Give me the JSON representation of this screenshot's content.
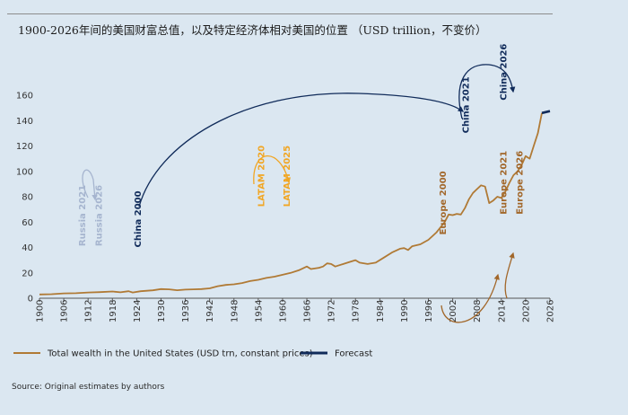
{
  "title": "1900-2026年间的美国财富总值，以及特定经济体相对美国的位置 （USD trillion，不变价）",
  "source": "Source: Original estimates by authors",
  "colors": {
    "historical": "#b07a35",
    "forecast": "#102b5a",
    "russia": "#a6b5cf",
    "latam": "#f1a624",
    "china": "#102b5a",
    "europe": "#a2672a",
    "background": "#dbe7f1"
  },
  "chart_data": {
    "type": "line",
    "title": "1900-2026年间的美国财富总值，以及特定经济体相对美国的位置 （USD trillion，不变价）",
    "xlim": [
      1900,
      2026
    ],
    "ylim": [
      0,
      160
    ],
    "x_ticks": [
      1900,
      1906,
      1912,
      1918,
      1924,
      1930,
      1936,
      1942,
      1948,
      1954,
      1960,
      1966,
      1972,
      1978,
      1984,
      1990,
      1996,
      2002,
      2008,
      2014,
      2020,
      2026
    ],
    "y_ticks": [
      0,
      20,
      40,
      60,
      80,
      100,
      120,
      140,
      160
    ],
    "series": [
      {
        "name": "Total wealth in the United States (USD trn, constant prices)",
        "style": "historical",
        "points": [
          [
            1900,
            3
          ],
          [
            1903,
            3.2
          ],
          [
            1906,
            3.8
          ],
          [
            1909,
            4
          ],
          [
            1912,
            4.5
          ],
          [
            1915,
            4.8
          ],
          [
            1918,
            5.3
          ],
          [
            1920,
            4.7
          ],
          [
            1922,
            5.5
          ],
          [
            1923,
            4.5
          ],
          [
            1925,
            5.5
          ],
          [
            1928,
            6.2
          ],
          [
            1930,
            7.2
          ],
          [
            1932,
            7
          ],
          [
            1934,
            6.3
          ],
          [
            1936,
            6.8
          ],
          [
            1938,
            7
          ],
          [
            1940,
            7.2
          ],
          [
            1942,
            7.8
          ],
          [
            1944,
            9.5
          ],
          [
            1946,
            10.5
          ],
          [
            1948,
            11
          ],
          [
            1950,
            12
          ],
          [
            1952,
            13.5
          ],
          [
            1954,
            14.5
          ],
          [
            1956,
            16
          ],
          [
            1958,
            17
          ],
          [
            1960,
            18.5
          ],
          [
            1962,
            20
          ],
          [
            1964,
            22
          ],
          [
            1966,
            25
          ],
          [
            1967,
            23
          ],
          [
            1969,
            24
          ],
          [
            1970,
            25
          ],
          [
            1971,
            27.5
          ],
          [
            1972,
            27
          ],
          [
            1973,
            25
          ],
          [
            1975,
            27
          ],
          [
            1977,
            29
          ],
          [
            1978,
            30
          ],
          [
            1979,
            28
          ],
          [
            1981,
            27
          ],
          [
            1983,
            28
          ],
          [
            1985,
            32
          ],
          [
            1987,
            36
          ],
          [
            1989,
            39
          ],
          [
            1990,
            39.5
          ],
          [
            1991,
            38
          ],
          [
            1992,
            41
          ],
          [
            1994,
            42.5
          ],
          [
            1996,
            46
          ],
          [
            1998,
            52
          ],
          [
            2000,
            60
          ],
          [
            2001,
            66
          ],
          [
            2002,
            65.5
          ],
          [
            2003,
            66.5
          ],
          [
            2004,
            66
          ],
          [
            2005,
            71
          ],
          [
            2006,
            78
          ],
          [
            2007,
            83
          ],
          [
            2008,
            86
          ],
          [
            2009,
            89
          ],
          [
            2010,
            88
          ],
          [
            2011,
            75
          ],
          [
            2012,
            77
          ],
          [
            2013,
            80
          ],
          [
            2014,
            79
          ],
          [
            2015,
            84
          ],
          [
            2016,
            91
          ],
          [
            2017,
            97
          ],
          [
            2018,
            100
          ],
          [
            2019,
            105
          ],
          [
            2020,
            112
          ],
          [
            2021,
            110
          ],
          [
            2022,
            120
          ],
          [
            2023,
            130
          ],
          [
            2024,
            146
          ]
        ]
      },
      {
        "name": "Forecast",
        "style": "forecast",
        "points": [
          [
            2024,
            146
          ],
          [
            2026,
            147.5
          ]
        ]
      }
    ],
    "annotations": [
      {
        "label": "Russia 2021",
        "x": 1911.3,
        "y": 41,
        "color": "russia"
      },
      {
        "label": "Russia 2026",
        "x": 1915.4,
        "y": 41,
        "color": "russia"
      },
      {
        "label": "China 2000",
        "x": 1925.0,
        "y": 40,
        "color": "china"
      },
      {
        "label": "LATAM 2020",
        "x": 1955.5,
        "y": 72,
        "color": "latam"
      },
      {
        "label": "LATAM 2025",
        "x": 1961.8,
        "y": 72,
        "color": "latam"
      },
      {
        "label": "China 2021",
        "x": 2006.0,
        "y": 130,
        "color": "china"
      },
      {
        "label": "China 2026",
        "x": 2015.3,
        "y": 156,
        "color": "china"
      },
      {
        "label": "Europe 2000",
        "x": 2000.3,
        "y": 50,
        "color": "europe"
      },
      {
        "label": "Europe 2021",
        "x": 2015.3,
        "y": 66,
        "color": "europe"
      },
      {
        "label": "Europe 2026",
        "x": 2019.3,
        "y": 66,
        "color": "europe"
      }
    ],
    "legend": [
      {
        "label": "Total wealth in the United States (USD trn, constant prices)",
        "style": "historical"
      },
      {
        "label": "Forecast",
        "style": "forecast"
      }
    ],
    "legend_position": "bottom-left"
  }
}
